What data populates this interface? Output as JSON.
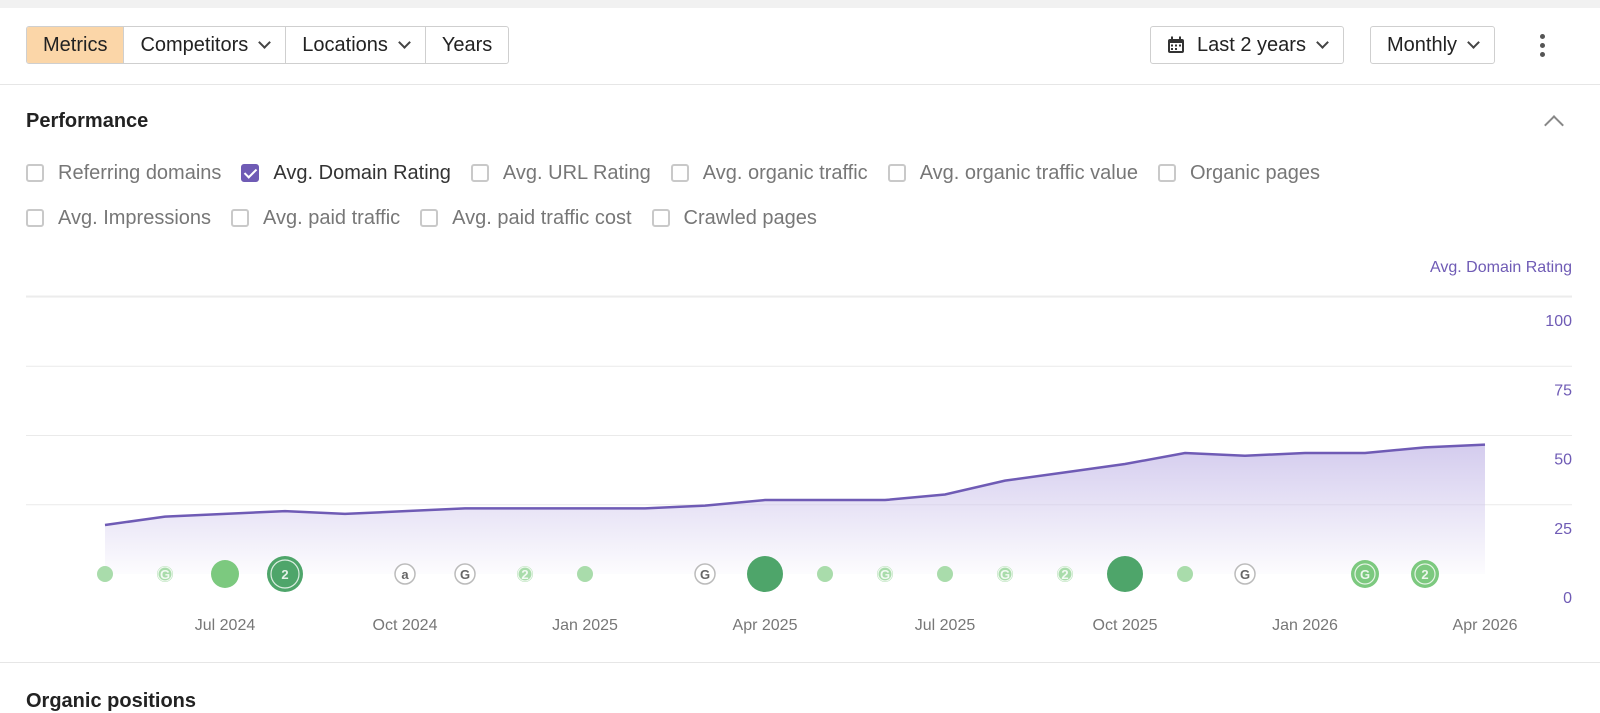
{
  "toolbar": {
    "tabs": [
      {
        "label": "Metrics",
        "active": true,
        "dropdown": false
      },
      {
        "label": "Competitors",
        "active": false,
        "dropdown": true
      },
      {
        "label": "Locations",
        "active": false,
        "dropdown": true
      },
      {
        "label": "Years",
        "active": false,
        "dropdown": false
      }
    ],
    "date_range": {
      "label": "Last 2 years",
      "icon": "calendar-icon"
    },
    "interval": {
      "label": "Monthly"
    },
    "more_icon": "kebab-menu-icon"
  },
  "performance": {
    "title": "Performance",
    "collapse_icon": "chevron-up-icon",
    "metrics_row1": [
      {
        "label": "Referring domains",
        "checked": false
      },
      {
        "label": "Avg. Domain Rating",
        "checked": true
      },
      {
        "label": "Avg. URL Rating",
        "checked": false
      },
      {
        "label": "Avg. organic traffic",
        "checked": false
      },
      {
        "label": "Avg. organic traffic value",
        "checked": false
      },
      {
        "label": "Organic pages",
        "checked": false
      }
    ],
    "metrics_row2": [
      {
        "label": "Avg. Impressions",
        "checked": false
      },
      {
        "label": "Avg. paid traffic",
        "checked": false
      },
      {
        "label": "Avg. paid traffic cost",
        "checked": false
      },
      {
        "label": "Crawled pages",
        "checked": false
      }
    ]
  },
  "chart_data": {
    "type": "area",
    "series": [
      {
        "name": "Avg. Domain Rating",
        "x": [
          "2024-05",
          "2024-06",
          "2024-07",
          "2024-08",
          "2024-09",
          "2024-10",
          "2024-11",
          "2024-12",
          "2025-01",
          "2025-02",
          "2025-03",
          "2025-04",
          "2025-05",
          "2025-06",
          "2025-07",
          "2025-08",
          "2025-09",
          "2025-10",
          "2025-11",
          "2025-12",
          "2026-01",
          "2026-02",
          "2026-03",
          "2026-04"
        ],
        "values": [
          26,
          29,
          30,
          31,
          30,
          31,
          32,
          32,
          32,
          32,
          33,
          35,
          35,
          35,
          37,
          42,
          45,
          48,
          52,
          51,
          52,
          52,
          54,
          55
        ]
      }
    ],
    "ylim": [
      0,
      100
    ],
    "yticks": [
      0,
      25,
      50,
      75,
      100
    ],
    "xticks": [
      {
        "date": "2024-07",
        "label": "Jul 2024"
      },
      {
        "date": "2024-10",
        "label": "Oct 2024"
      },
      {
        "date": "2025-01",
        "label": "Jan 2025"
      },
      {
        "date": "2025-04",
        "label": "Apr 2025"
      },
      {
        "date": "2025-07",
        "label": "Jul 2025"
      },
      {
        "date": "2025-10",
        "label": "Oct 2025"
      },
      {
        "date": "2026-01",
        "label": "Jan 2026"
      },
      {
        "date": "2026-04",
        "label": "Apr 2026"
      }
    ],
    "axis_label": "Avg. Domain Rating",
    "grid": true,
    "line_color": "#6f5bb5",
    "fill_color": "#d8d2ee",
    "markers": [
      {
        "date": "2024-05",
        "kind": "dot",
        "size": "s",
        "label": ""
      },
      {
        "date": "2024-06",
        "kind": "google",
        "size": "s",
        "label": "G"
      },
      {
        "date": "2024-07",
        "kind": "dot",
        "size": "m",
        "label": ""
      },
      {
        "date": "2024-08",
        "kind": "count",
        "size": "l",
        "label": "2"
      },
      {
        "date": "2024-10",
        "kind": "outline",
        "size": "s",
        "label": "a"
      },
      {
        "date": "2024-11",
        "kind": "outline",
        "size": "s",
        "label": "G"
      },
      {
        "date": "2024-12",
        "kind": "count",
        "size": "s",
        "label": "2"
      },
      {
        "date": "2025-01",
        "kind": "dot",
        "size": "s",
        "label": ""
      },
      {
        "date": "2025-03",
        "kind": "outline",
        "size": "s",
        "label": "G"
      },
      {
        "date": "2025-04",
        "kind": "dot",
        "size": "l",
        "label": ""
      },
      {
        "date": "2025-05",
        "kind": "dot",
        "size": "s",
        "label": ""
      },
      {
        "date": "2025-06",
        "kind": "google",
        "size": "s",
        "label": "G"
      },
      {
        "date": "2025-07",
        "kind": "dot",
        "size": "s",
        "label": ""
      },
      {
        "date": "2025-08",
        "kind": "google",
        "size": "s",
        "label": "G"
      },
      {
        "date": "2025-09",
        "kind": "count",
        "size": "s",
        "label": "2"
      },
      {
        "date": "2025-10",
        "kind": "dot",
        "size": "l",
        "label": ""
      },
      {
        "date": "2025-11",
        "kind": "dot",
        "size": "s",
        "label": ""
      },
      {
        "date": "2025-12",
        "kind": "outline",
        "size": "s",
        "label": "G"
      },
      {
        "date": "2026-02",
        "kind": "google",
        "size": "m",
        "label": "G"
      },
      {
        "date": "2026-03",
        "kind": "count",
        "size": "m",
        "label": "2"
      }
    ]
  },
  "next_section": {
    "title": "Organic positions"
  }
}
